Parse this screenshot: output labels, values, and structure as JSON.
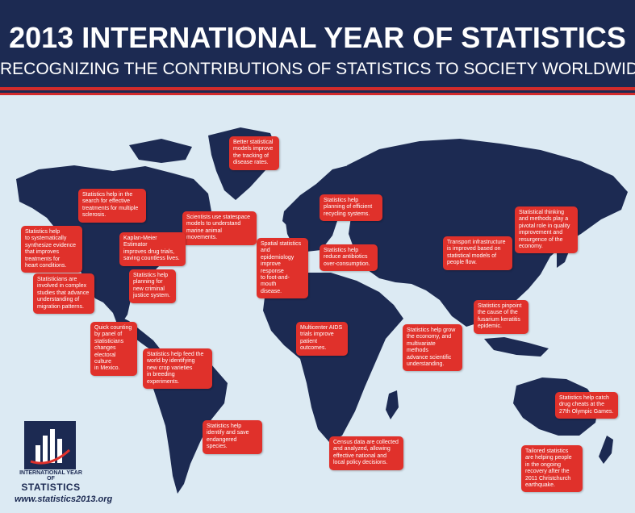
{
  "header": {
    "title": "2013 INTERNATIONAL YEAR OF STATISTICS",
    "subtitle": "RECOGNIZING THE CONTRIBUTIONS OF STATISTICS TO SOCIETY WORLDWIDE"
  },
  "colors": {
    "navy": "#1c2a52",
    "red": "#e0312b",
    "ocean": "#dceaf3"
  },
  "callouts": [
    {
      "id": "disease-tracking",
      "lines": [
        "Better statistical",
        "models improve",
        "the tracking of",
        "disease rates."
      ]
    },
    {
      "id": "multiple-sclerosis",
      "lines": [
        "Statistics help in the",
        "search for effective",
        "treatments for multiple",
        "sclerosis."
      ]
    },
    {
      "id": "marine-animals",
      "lines": [
        "Scientists use statespace",
        "models to understand",
        "marine animal movements."
      ]
    },
    {
      "id": "recycling",
      "lines": [
        "Statistics help",
        "planning of efficient",
        "recycling systems."
      ]
    },
    {
      "id": "quality-japan",
      "lines": [
        "Statistical thinking",
        "and methods play a",
        "pivotal role in quality",
        "improvement and",
        "resurgence of the",
        "economy."
      ]
    },
    {
      "id": "heart-conditions",
      "lines": [
        "Statistics help",
        "to systematically",
        "synthesize evidence",
        "that improves",
        "treatments for",
        "heart conditions."
      ]
    },
    {
      "id": "kaplan-meier",
      "lines": [
        "Kaplan-Meier Estimator",
        "improves drug trials,",
        "saving countless lives."
      ]
    },
    {
      "id": "foot-and-mouth",
      "lines": [
        "Spatial statistics",
        "and epidemiology",
        "improve response",
        "to foot-and-mouth",
        "disease."
      ]
    },
    {
      "id": "antibiotics",
      "lines": [
        "Statistics help",
        "reduce antibiotics",
        "over-consumption."
      ]
    },
    {
      "id": "transport",
      "lines": [
        "Transport infrastructure",
        "is improved based on",
        "statistical models of",
        "people flow."
      ]
    },
    {
      "id": "migration",
      "lines": [
        "Statisticians are",
        "involved in complex",
        "studies that advance",
        "understanding of",
        "migration patterns."
      ]
    },
    {
      "id": "criminal-justice",
      "lines": [
        "Statistics help",
        "planning for",
        "new criminal",
        "justice system."
      ]
    },
    {
      "id": "fusarium",
      "lines": [
        "Statistics pinpoint",
        "the cause of the",
        "fusarium keratitis",
        "epidemic."
      ]
    },
    {
      "id": "mexico-elections",
      "lines": [
        "Quick counting",
        "by panel of",
        "statisticians",
        "changes",
        "electoral culture",
        "in Mexico."
      ]
    },
    {
      "id": "aids-trials",
      "lines": [
        "Multicenter AIDS",
        "trials improve",
        "patient outcomes."
      ]
    },
    {
      "id": "india-economy",
      "lines": [
        "Statistics help grow",
        "the economy, and",
        "multivariate methods",
        "advance scientific",
        "understanding."
      ]
    },
    {
      "id": "crop-varieties",
      "lines": [
        "Statistics help feed the",
        "world by identifying",
        "new crop varieties",
        "in breeding experiments."
      ]
    },
    {
      "id": "olympics",
      "lines": [
        "Statistics help catch",
        "drug cheats at the",
        "27th Olympic Games."
      ]
    },
    {
      "id": "endangered-species",
      "lines": [
        "Statistics help",
        "identify and save",
        "endangered species."
      ]
    },
    {
      "id": "census",
      "lines": [
        "Census data are collected",
        "and analyzed, allowing",
        "effective national and",
        "local policy decisions."
      ]
    },
    {
      "id": "christchurch",
      "lines": [
        "Tailored statistics",
        "are helping people",
        "in the ongoing",
        "recovery after the",
        "2011 Christchurch",
        "earthquake."
      ]
    }
  ],
  "logo": {
    "line1": "INTERNATIONAL YEAR OF",
    "line2": "STATISTICS"
  },
  "website": "www.statistics2013.org"
}
